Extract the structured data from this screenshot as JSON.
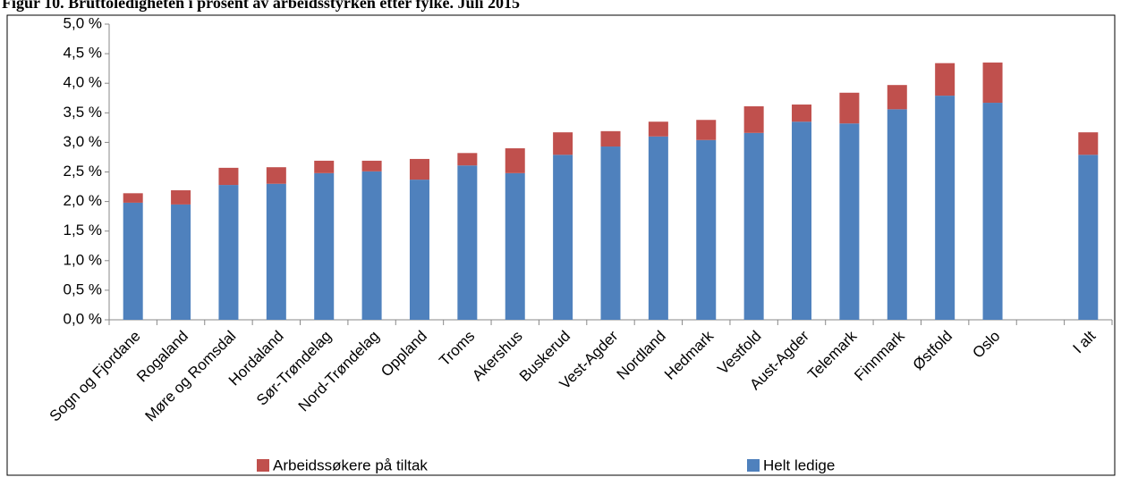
{
  "chart_data": {
    "type": "stacked-bar",
    "title": "Figur 10. Bruttoledigheten i prosent av arbeidsstyrken etter fylke. Juli 2015",
    "categories": [
      "Sogn og Fjordane",
      "Rogaland",
      "Møre og Romsdal",
      "Hordaland",
      "Sør-Trøndelag",
      "Nord-Trøndelag",
      "Oppland",
      "Troms",
      "Akershus",
      "Buskerud",
      "Vest-Agder",
      "Nordland",
      "Hedmark",
      "Vestfold",
      "Aust-Agder",
      "Telemark",
      "Finnmark",
      "Østfold",
      "Oslo",
      null,
      "I alt"
    ],
    "series": [
      {
        "name": "Helt ledige",
        "color": "#4f81bd",
        "values": [
          1.98,
          1.95,
          2.28,
          2.3,
          2.48,
          2.51,
          2.37,
          2.61,
          2.48,
          2.79,
          2.93,
          3.1,
          3.04,
          3.16,
          3.35,
          3.32,
          3.56,
          3.79,
          3.67,
          null,
          2.79
        ]
      },
      {
        "name": "Arbeidssøkere på tiltak",
        "color": "#c0504d",
        "values": [
          0.16,
          0.24,
          0.29,
          0.28,
          0.21,
          0.18,
          0.35,
          0.21,
          0.42,
          0.38,
          0.26,
          0.25,
          0.34,
          0.45,
          0.29,
          0.52,
          0.41,
          0.55,
          0.68,
          null,
          0.38
        ]
      }
    ],
    "ylim": [
      0,
      5
    ],
    "yticks": [
      {
        "value": 0,
        "label": "0,0 %"
      },
      {
        "value": 0.5,
        "label": "0,5 %"
      },
      {
        "value": 1,
        "label": "1,0 %"
      },
      {
        "value": 1.5,
        "label": "1,5 %"
      },
      {
        "value": 2,
        "label": "2,0 %"
      },
      {
        "value": 2.5,
        "label": "2,5 %"
      },
      {
        "value": 3,
        "label": "3,0 %"
      },
      {
        "value": 3.5,
        "label": "3,5 %"
      },
      {
        "value": 4,
        "label": "4,0 %"
      },
      {
        "value": 4.5,
        "label": "4,5 %"
      },
      {
        "value": 5,
        "label": "5,0 %"
      }
    ],
    "grid": false,
    "legend": "bottom"
  }
}
